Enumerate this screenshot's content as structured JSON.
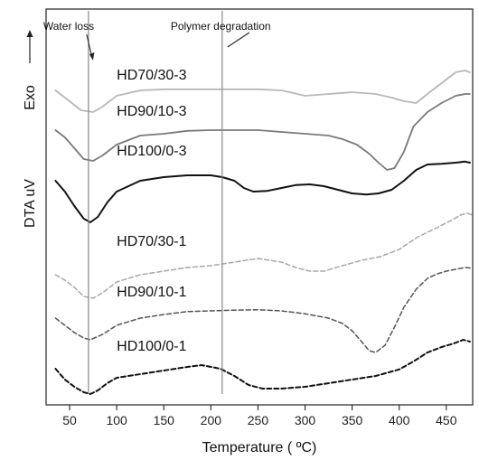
{
  "chart_data": {
    "type": "line",
    "title": "",
    "xlabel": "Temperature ( ºC)",
    "ylabel": "DTA uV",
    "exo_label": "Exo",
    "xlim": [
      25,
      478
    ],
    "ylim": [
      0,
      100
    ],
    "x_ticks": [
      50,
      100,
      150,
      200,
      250,
      300,
      350,
      400,
      450
    ],
    "y_ticks_shown": false,
    "grid": false,
    "annotations": [
      {
        "text": "Water loss",
        "x": 70
      },
      {
        "text": "Polymer degradation",
        "x": 212
      }
    ],
    "series": [
      {
        "name": "HD70/30-3",
        "color": "#b8b8b8",
        "dash": "solid",
        "width": 1.8,
        "label_x": 100,
        "label_y": 88,
        "points": [
          [
            35,
            85
          ],
          [
            50,
            82
          ],
          [
            62,
            79.5
          ],
          [
            75,
            79
          ],
          [
            85,
            80.5
          ],
          [
            100,
            83.5
          ],
          [
            125,
            85
          ],
          [
            150,
            85.3
          ],
          [
            200,
            85.3
          ],
          [
            250,
            85.3
          ],
          [
            275,
            85
          ],
          [
            300,
            83.5
          ],
          [
            325,
            84
          ],
          [
            350,
            84.5
          ],
          [
            375,
            84
          ],
          [
            392,
            83
          ],
          [
            405,
            82
          ],
          [
            418,
            81.5
          ],
          [
            430,
            84
          ],
          [
            445,
            87
          ],
          [
            460,
            90
          ],
          [
            470,
            90.5
          ],
          [
            475,
            90
          ]
        ]
      },
      {
        "name": "HD90/10-3",
        "color": "#7a7a7a",
        "dash": "solid",
        "width": 1.8,
        "label_x": 100,
        "label_y": 78,
        "points": [
          [
            35,
            74
          ],
          [
            45,
            72
          ],
          [
            55,
            69
          ],
          [
            65,
            66
          ],
          [
            75,
            65.5
          ],
          [
            85,
            67
          ],
          [
            100,
            70
          ],
          [
            125,
            72.5
          ],
          [
            150,
            73
          ],
          [
            175,
            73.8
          ],
          [
            200,
            74
          ],
          [
            225,
            74
          ],
          [
            250,
            74
          ],
          [
            275,
            73.5
          ],
          [
            300,
            73
          ],
          [
            325,
            72.5
          ],
          [
            340,
            71.5
          ],
          [
            355,
            70
          ],
          [
            368,
            67.5
          ],
          [
            378,
            65
          ],
          [
            387,
            63
          ],
          [
            395,
            63.5
          ],
          [
            405,
            68
          ],
          [
            415,
            75
          ],
          [
            430,
            79
          ],
          [
            445,
            81.5
          ],
          [
            460,
            83.5
          ],
          [
            470,
            84
          ],
          [
            475,
            84
          ]
        ]
      },
      {
        "name": "HD100/0-3",
        "color": "#111111",
        "dash": "solid",
        "width": 2.0,
        "label_x": 100,
        "label_y": 67,
        "points": [
          [
            35,
            60
          ],
          [
            45,
            57
          ],
          [
            55,
            53
          ],
          [
            65,
            49.5
          ],
          [
            72,
            48.5
          ],
          [
            80,
            50
          ],
          [
            90,
            54
          ],
          [
            100,
            57
          ],
          [
            125,
            60
          ],
          [
            150,
            61
          ],
          [
            175,
            61.5
          ],
          [
            200,
            61.5
          ],
          [
            212,
            61
          ],
          [
            225,
            60
          ],
          [
            235,
            58
          ],
          [
            245,
            57
          ],
          [
            260,
            57.2
          ],
          [
            275,
            58
          ],
          [
            290,
            58.8
          ],
          [
            305,
            59
          ],
          [
            320,
            58.5
          ],
          [
            335,
            57.5
          ],
          [
            350,
            56.5
          ],
          [
            365,
            56.2
          ],
          [
            378,
            56.5
          ],
          [
            392,
            57.5
          ],
          [
            405,
            60
          ],
          [
            418,
            63
          ],
          [
            430,
            64.5
          ],
          [
            445,
            64.7
          ],
          [
            460,
            65
          ],
          [
            470,
            65.3
          ],
          [
            475,
            65
          ]
        ]
      },
      {
        "name": "HD70/30-1",
        "color": "#a8a8a8",
        "dash": "5 3",
        "width": 1.5,
        "label_x": 100,
        "label_y": 42,
        "points": [
          [
            35,
            34
          ],
          [
            45,
            32.5
          ],
          [
            55,
            30.5
          ],
          [
            65,
            28
          ],
          [
            75,
            27.5
          ],
          [
            85,
            29
          ],
          [
            100,
            32
          ],
          [
            125,
            34
          ],
          [
            150,
            35
          ],
          [
            175,
            36
          ],
          [
            200,
            36.5
          ],
          [
            225,
            37.5
          ],
          [
            250,
            38.5
          ],
          [
            275,
            37.5
          ],
          [
            290,
            36
          ],
          [
            305,
            35
          ],
          [
            320,
            35
          ],
          [
            340,
            36.5
          ],
          [
            360,
            38
          ],
          [
            380,
            39
          ],
          [
            400,
            41
          ],
          [
            420,
            44.5
          ],
          [
            440,
            47
          ],
          [
            455,
            49
          ],
          [
            465,
            50.5
          ],
          [
            472,
            51
          ],
          [
            478,
            50.5
          ]
        ]
      },
      {
        "name": "HD90/10-1",
        "color": "#555555",
        "dash": "5 3",
        "width": 1.5,
        "label_x": 100,
        "label_y": 28,
        "points": [
          [
            35,
            22
          ],
          [
            45,
            20
          ],
          [
            55,
            18
          ],
          [
            65,
            16.5
          ],
          [
            72,
            16
          ],
          [
            85,
            17.5
          ],
          [
            100,
            20
          ],
          [
            125,
            22
          ],
          [
            150,
            23
          ],
          [
            175,
            23.8
          ],
          [
            200,
            24
          ],
          [
            225,
            24.2
          ],
          [
            250,
            24.3
          ],
          [
            275,
            24
          ],
          [
            300,
            23.2
          ],
          [
            325,
            22
          ],
          [
            340,
            20.5
          ],
          [
            350,
            18.5
          ],
          [
            360,
            15.5
          ],
          [
            368,
            13
          ],
          [
            375,
            12.5
          ],
          [
            385,
            14.5
          ],
          [
            395,
            19.5
          ],
          [
            405,
            25
          ],
          [
            418,
            30
          ],
          [
            430,
            33
          ],
          [
            440,
            34.2
          ],
          [
            450,
            35
          ],
          [
            460,
            35.5
          ],
          [
            470,
            36
          ],
          [
            478,
            35.8
          ]
        ]
      },
      {
        "name": "HD100/0-1",
        "color": "#111111",
        "dash": "5 3",
        "width": 2.0,
        "label_x": 100,
        "label_y": 13,
        "points": [
          [
            35,
            8
          ],
          [
            45,
            5
          ],
          [
            55,
            3
          ],
          [
            65,
            1.5
          ],
          [
            72,
            1
          ],
          [
            80,
            2
          ],
          [
            90,
            4
          ],
          [
            100,
            5.5
          ],
          [
            125,
            6.5
          ],
          [
            150,
            7.5
          ],
          [
            175,
            8.5
          ],
          [
            190,
            9
          ],
          [
            200,
            8.5
          ],
          [
            210,
            8
          ],
          [
            225,
            6
          ],
          [
            240,
            3.5
          ],
          [
            255,
            2.5
          ],
          [
            275,
            2.5
          ],
          [
            300,
            3
          ],
          [
            325,
            4
          ],
          [
            350,
            5
          ],
          [
            375,
            6
          ],
          [
            400,
            7.8
          ],
          [
            415,
            10
          ],
          [
            430,
            12.5
          ],
          [
            445,
            14
          ],
          [
            458,
            15
          ],
          [
            468,
            16
          ],
          [
            475,
            15.5
          ]
        ]
      }
    ]
  }
}
